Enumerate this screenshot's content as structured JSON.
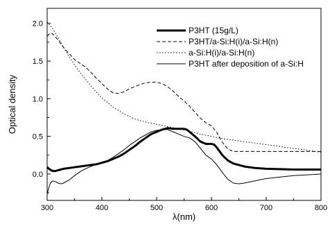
{
  "chart_data": {
    "type": "line",
    "title": "",
    "xlabel": "λ(nm)",
    "ylabel": "Optical density",
    "xlim": [
      300,
      800
    ],
    "ylim": [
      -0.35,
      2.2
    ],
    "x_ticks": [
      300,
      400,
      500,
      600,
      700,
      800
    ],
    "y_ticks": [
      0.0,
      0.5,
      1.0,
      1.5,
      2.0
    ],
    "x_tick_labels": [
      "300",
      "400",
      "500",
      "600",
      "700",
      "800"
    ],
    "y_tick_labels": [
      "0.0",
      "0.5",
      "1.0",
      "1.5",
      "2.0"
    ],
    "grid": false,
    "legend_position": "top-right",
    "series": [
      {
        "name": "P3HT (15g/L)",
        "style": "thick-solid",
        "points": [
          [
            300,
            0.09
          ],
          [
            305,
            0.06
          ],
          [
            310,
            0.04
          ],
          [
            315,
            0.04
          ],
          [
            320,
            0.05
          ],
          [
            330,
            0.07
          ],
          [
            340,
            0.08
          ],
          [
            350,
            0.09
          ],
          [
            360,
            0.1
          ],
          [
            370,
            0.11
          ],
          [
            380,
            0.12
          ],
          [
            390,
            0.13
          ],
          [
            400,
            0.15
          ],
          [
            410,
            0.17
          ],
          [
            420,
            0.2
          ],
          [
            430,
            0.23
          ],
          [
            440,
            0.27
          ],
          [
            450,
            0.32
          ],
          [
            460,
            0.37
          ],
          [
            470,
            0.43
          ],
          [
            480,
            0.48
          ],
          [
            490,
            0.53
          ],
          [
            500,
            0.56
          ],
          [
            510,
            0.59
          ],
          [
            520,
            0.61
          ],
          [
            530,
            0.6
          ],
          [
            540,
            0.6
          ],
          [
            550,
            0.6
          ],
          [
            555,
            0.59
          ],
          [
            560,
            0.56
          ],
          [
            570,
            0.5
          ],
          [
            580,
            0.43
          ],
          [
            590,
            0.4
          ],
          [
            600,
            0.4
          ],
          [
            605,
            0.39
          ],
          [
            610,
            0.35
          ],
          [
            620,
            0.25
          ],
          [
            630,
            0.18
          ],
          [
            640,
            0.14
          ],
          [
            650,
            0.12
          ],
          [
            660,
            0.1
          ],
          [
            680,
            0.08
          ],
          [
            700,
            0.07
          ],
          [
            750,
            0.06
          ],
          [
            800,
            0.06
          ]
        ]
      },
      {
        "name": "P3HT/a-Si:H(i)/a-Si:H(n)",
        "style": "dashed",
        "points": [
          [
            300,
            1.83
          ],
          [
            305,
            1.87
          ],
          [
            310,
            1.86
          ],
          [
            320,
            1.78
          ],
          [
            330,
            1.68
          ],
          [
            340,
            1.6
          ],
          [
            350,
            1.52
          ],
          [
            360,
            1.47
          ],
          [
            370,
            1.42
          ],
          [
            380,
            1.35
          ],
          [
            390,
            1.27
          ],
          [
            400,
            1.2
          ],
          [
            410,
            1.13
          ],
          [
            420,
            1.08
          ],
          [
            430,
            1.07
          ],
          [
            440,
            1.09
          ],
          [
            450,
            1.13
          ],
          [
            460,
            1.16
          ],
          [
            470,
            1.19
          ],
          [
            480,
            1.21
          ],
          [
            490,
            1.22
          ],
          [
            500,
            1.22
          ],
          [
            510,
            1.2
          ],
          [
            520,
            1.16
          ],
          [
            530,
            1.1
          ],
          [
            540,
            1.03
          ],
          [
            550,
            0.97
          ],
          [
            560,
            0.9
          ],
          [
            570,
            0.82
          ],
          [
            580,
            0.74
          ],
          [
            590,
            0.68
          ],
          [
            600,
            0.64
          ],
          [
            610,
            0.55
          ],
          [
            620,
            0.42
          ],
          [
            630,
            0.33
          ],
          [
            640,
            0.3
          ],
          [
            660,
            0.3
          ],
          [
            700,
            0.3
          ],
          [
            750,
            0.3
          ],
          [
            800,
            0.3
          ]
        ]
      },
      {
        "name": "a-Si:H(i)/a-Si:H(n)",
        "style": "dotted",
        "points": [
          [
            300,
            2.02
          ],
          [
            310,
            1.93
          ],
          [
            320,
            1.81
          ],
          [
            330,
            1.68
          ],
          [
            340,
            1.56
          ],
          [
            350,
            1.45
          ],
          [
            360,
            1.35
          ],
          [
            370,
            1.26
          ],
          [
            380,
            1.17
          ],
          [
            390,
            1.09
          ],
          [
            400,
            1.01
          ],
          [
            420,
            0.89
          ],
          [
            440,
            0.8
          ],
          [
            460,
            0.73
          ],
          [
            480,
            0.69
          ],
          [
            500,
            0.66
          ],
          [
            520,
            0.63
          ],
          [
            540,
            0.6
          ],
          [
            560,
            0.57
          ],
          [
            580,
            0.53
          ],
          [
            600,
            0.5
          ],
          [
            620,
            0.47
          ],
          [
            640,
            0.45
          ],
          [
            660,
            0.43
          ],
          [
            680,
            0.41
          ],
          [
            700,
            0.39
          ],
          [
            720,
            0.37
          ],
          [
            740,
            0.35
          ],
          [
            760,
            0.33
          ],
          [
            780,
            0.31
          ],
          [
            800,
            0.29
          ]
        ]
      },
      {
        "name": "P3HT after deposition of a-Si:H",
        "style": "thin-solid",
        "points": [
          [
            300,
            -0.27
          ],
          [
            303,
            -0.18
          ],
          [
            306,
            -0.12
          ],
          [
            310,
            -0.09
          ],
          [
            315,
            -0.1
          ],
          [
            320,
            -0.12
          ],
          [
            325,
            -0.13
          ],
          [
            330,
            -0.12
          ],
          [
            340,
            -0.08
          ],
          [
            350,
            -0.02
          ],
          [
            360,
            0.03
          ],
          [
            370,
            0.07
          ],
          [
            380,
            0.1
          ],
          [
            390,
            0.13
          ],
          [
            400,
            0.15
          ],
          [
            410,
            0.18
          ],
          [
            420,
            0.22
          ],
          [
            430,
            0.27
          ],
          [
            440,
            0.32
          ],
          [
            450,
            0.38
          ],
          [
            460,
            0.43
          ],
          [
            470,
            0.48
          ],
          [
            480,
            0.52
          ],
          [
            490,
            0.56
          ],
          [
            500,
            0.58
          ],
          [
            510,
            0.59
          ],
          [
            520,
            0.59
          ],
          [
            530,
            0.56
          ],
          [
            540,
            0.53
          ],
          [
            550,
            0.5
          ],
          [
            560,
            0.48
          ],
          [
            570,
            0.43
          ],
          [
            580,
            0.34
          ],
          [
            590,
            0.25
          ],
          [
            600,
            0.2
          ],
          [
            610,
            0.12
          ],
          [
            620,
            0.02
          ],
          [
            630,
            -0.07
          ],
          [
            640,
            -0.12
          ],
          [
            650,
            -0.13
          ],
          [
            660,
            -0.12
          ],
          [
            680,
            -0.09
          ],
          [
            700,
            -0.06
          ],
          [
            750,
            -0.02
          ],
          [
            800,
            0.0
          ]
        ]
      }
    ]
  }
}
